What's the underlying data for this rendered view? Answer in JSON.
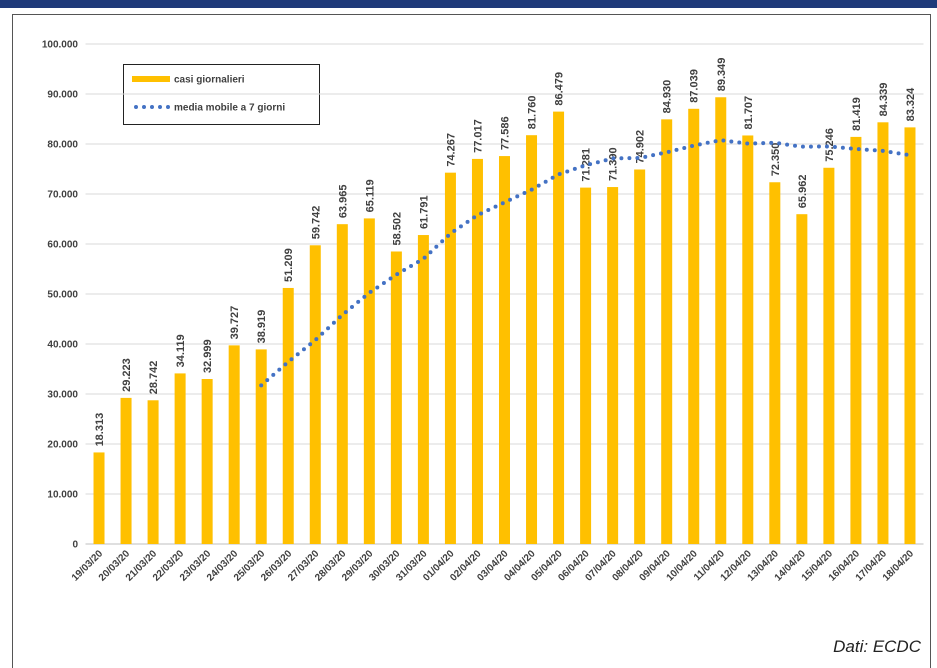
{
  "chart_data": {
    "type": "bar",
    "categories": [
      "19/03/20",
      "20/03/20",
      "21/03/20",
      "22/03/20",
      "23/03/20",
      "24/03/20",
      "25/03/20",
      "26/03/20",
      "27/03/20",
      "28/03/20",
      "29/03/20",
      "30/03/20",
      "31/03/20",
      "01/04/20",
      "02/04/20",
      "03/04/20",
      "04/04/20",
      "05/04/20",
      "06/04/20",
      "07/04/20",
      "08/04/20",
      "09/04/20",
      "10/04/20",
      "11/04/20",
      "12/04/20",
      "13/04/20",
      "14/04/20",
      "15/04/20",
      "16/04/20",
      "17/04/20",
      "18/04/20"
    ],
    "series": [
      {
        "name": "casi giornalieri",
        "type": "bar",
        "color": "#ffc000",
        "values": [
          18313,
          29223,
          28742,
          34119,
          32999,
          39727,
          38919,
          51209,
          59742,
          63965,
          65119,
          58502,
          61791,
          74267,
          77017,
          77586,
          81760,
          86479,
          71281,
          71390,
          74902,
          84930,
          87039,
          89349,
          81707,
          72350,
          65962,
          75246,
          81419,
          84339,
          83324
        ],
        "value_labels": [
          "18.313",
          "29.223",
          "28.742",
          "34.119",
          "32.999",
          "39.727",
          "38.919",
          "51.209",
          "59.742",
          "63.965",
          "65.119",
          "58.502",
          "61.791",
          "74.267",
          "77.017",
          "77.586",
          "81.760",
          "86.479",
          "71.281",
          "71.390",
          "74.902",
          "84.930",
          "87.039",
          "89.349",
          "81.707",
          "72.350",
          "65.962",
          "75.246",
          "81.419",
          "84.339",
          "83.324"
        ]
      },
      {
        "name": "media mobile a 7 giorni",
        "type": "line",
        "color": "#4472c4",
        "values": [
          null,
          null,
          null,
          null,
          null,
          null,
          31720,
          36420,
          40780,
          45811,
          50240,
          53883,
          57035,
          62085,
          65772,
          68321,
          70863,
          73915,
          75740,
          77111,
          77202,
          78333,
          79683,
          80767,
          80085,
          80238,
          79463,
          79512,
          79010,
          78625,
          77764
        ]
      }
    ],
    "ylim": [
      0,
      100000
    ],
    "yticks": [
      0,
      {
        "value": 10000,
        "label": "10.000"
      },
      {
        "value": 20000,
        "label": "20.000"
      },
      {
        "value": 30000,
        "label": "30.000"
      },
      {
        "value": 40000,
        "label": "40.000"
      },
      {
        "value": 50000,
        "label": "50.000"
      },
      {
        "value": 60000,
        "label": "60.000"
      },
      {
        "value": 70000,
        "label": "70.000"
      },
      {
        "value": 80000,
        "label": "80.000"
      },
      {
        "value": 90000,
        "label": "90.000"
      },
      {
        "value": 100000,
        "label": "100.000"
      }
    ],
    "grid": true,
    "legend": "upper left",
    "annotation": "Dati: ECDC"
  }
}
